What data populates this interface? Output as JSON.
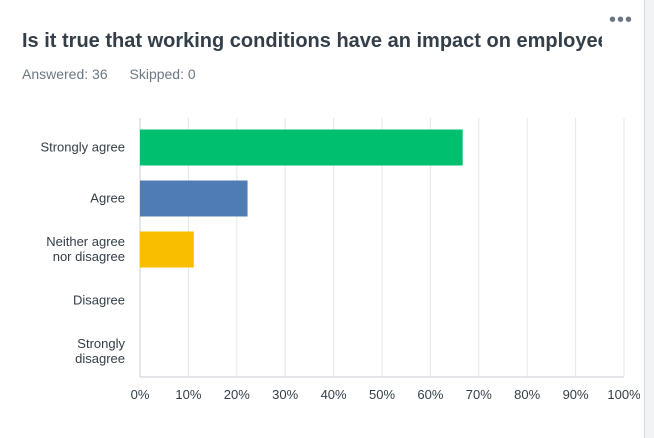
{
  "question": {
    "title": "Is it true that working conditions have an impact on employee...",
    "answered_label": "Answered: 36",
    "skipped_label": "Skipped: 0",
    "more_icon": "ellipsis-horizontal-icon"
  },
  "chart_data": {
    "type": "bar",
    "orientation": "horizontal",
    "categories": [
      [
        "Strongly agree"
      ],
      [
        "Agree"
      ],
      [
        "Neither agree",
        "nor disagree"
      ],
      [
        "Disagree"
      ],
      [
        "Strongly",
        "disagree"
      ]
    ],
    "values": [
      66.67,
      22.22,
      11.11,
      0,
      0
    ],
    "colors": [
      "#00bf6f",
      "#507cb6",
      "#f9be00",
      "#6bc8cd",
      "#ff8b4f"
    ],
    "x_ticks": [
      "0%",
      "10%",
      "20%",
      "30%",
      "40%",
      "50%",
      "60%",
      "70%",
      "80%",
      "90%",
      "100%"
    ],
    "xlim": [
      0,
      100
    ],
    "grid": true
  }
}
